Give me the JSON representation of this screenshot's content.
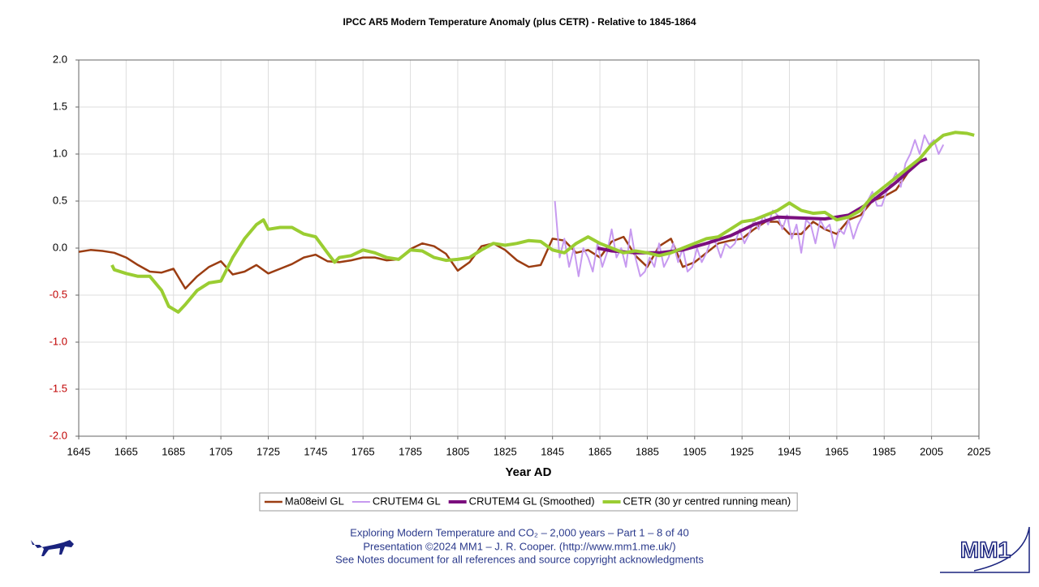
{
  "chart_data": {
    "type": "line",
    "title": "IPCC AR5 Modern Temperature Anomaly (plus CETR) - Relative to 1845-1864",
    "x_label": "Year AD",
    "xlim": [
      1645,
      2025
    ],
    "xticks": [
      1645,
      1665,
      1685,
      1705,
      1725,
      1745,
      1765,
      1785,
      1805,
      1825,
      1845,
      1865,
      1885,
      1905,
      1925,
      1945,
      1965,
      1985,
      2005,
      2025
    ],
    "ylim": [
      -2,
      2
    ],
    "yticks": [
      {
        "value": 2,
        "label": "2.0"
      },
      {
        "value": 1.5,
        "label": "1.5"
      },
      {
        "value": 1,
        "label": "1.0"
      },
      {
        "value": 0.5,
        "label": "0.5"
      },
      {
        "value": 0,
        "label": "0.0"
      },
      {
        "value": -0.5,
        "label": "-0.5"
      },
      {
        "value": -1,
        "label": "-1.0"
      },
      {
        "value": -1.5,
        "label": "-1.5"
      },
      {
        "value": -2,
        "label": "-2.0"
      }
    ],
    "grid": true,
    "legend": "bottom",
    "series": [
      {
        "name": "Ma08eivl GL",
        "color": "#9b3d12",
        "width": 2.5,
        "x": [
          1645,
          1650,
          1655,
          1660,
          1665,
          1670,
          1675,
          1680,
          1685,
          1690,
          1695,
          1700,
          1705,
          1710,
          1715,
          1720,
          1725,
          1730,
          1735,
          1740,
          1745,
          1750,
          1755,
          1760,
          1765,
          1770,
          1775,
          1780,
          1785,
          1790,
          1795,
          1800,
          1805,
          1810,
          1815,
          1820,
          1825,
          1830,
          1835,
          1840,
          1845,
          1850,
          1855,
          1860,
          1865,
          1870,
          1875,
          1880,
          1885,
          1890,
          1895,
          1900,
          1905,
          1910,
          1915,
          1920,
          1925,
          1930,
          1935,
          1940,
          1945,
          1950,
          1955,
          1960,
          1965,
          1970,
          1975,
          1980,
          1985,
          1990,
          1995,
          2000
        ],
        "values": [
          -0.04,
          -0.02,
          -0.03,
          -0.05,
          -0.1,
          -0.18,
          -0.25,
          -0.26,
          -0.22,
          -0.43,
          -0.3,
          -0.2,
          -0.14,
          -0.28,
          -0.25,
          -0.18,
          -0.27,
          -0.22,
          -0.17,
          -0.1,
          -0.07,
          -0.14,
          -0.15,
          -0.13,
          -0.1,
          -0.1,
          -0.13,
          -0.12,
          -0.01,
          0.05,
          0.02,
          -0.06,
          -0.24,
          -0.15,
          0.02,
          0.05,
          -0.02,
          -0.13,
          -0.2,
          -0.18,
          0.1,
          0.08,
          -0.05,
          -0.02,
          -0.1,
          0.07,
          0.12,
          -0.08,
          -0.2,
          0.02,
          0.1,
          -0.2,
          -0.15,
          -0.05,
          0.05,
          0.08,
          0.1,
          0.2,
          0.28,
          0.28,
          0.15,
          0.15,
          0.28,
          0.2,
          0.15,
          0.3,
          0.35,
          0.5,
          0.55,
          0.62,
          0.8,
          0.95
        ]
      },
      {
        "name": "CRUTEM4 GL",
        "color": "#c79af0",
        "width": 2,
        "x": [
          1846,
          1848,
          1850,
          1852,
          1854,
          1856,
          1858,
          1860,
          1862,
          1864,
          1866,
          1868,
          1870,
          1872,
          1874,
          1876,
          1878,
          1880,
          1882,
          1884,
          1886,
          1888,
          1890,
          1892,
          1894,
          1896,
          1898,
          1900,
          1902,
          1904,
          1906,
          1908,
          1910,
          1912,
          1914,
          1916,
          1918,
          1920,
          1922,
          1924,
          1926,
          1928,
          1930,
          1932,
          1934,
          1936,
          1938,
          1940,
          1942,
          1944,
          1946,
          1948,
          1950,
          1952,
          1954,
          1956,
          1958,
          1960,
          1962,
          1964,
          1966,
          1968,
          1970,
          1972,
          1974,
          1976,
          1978,
          1980,
          1982,
          1984,
          1986,
          1988,
          1990,
          1992,
          1994,
          1996,
          1998,
          2000,
          2002,
          2004,
          2006,
          2008,
          2010
        ],
        "values": [
          0.5,
          -0.1,
          0.1,
          -0.2,
          0.0,
          -0.3,
          0.0,
          -0.1,
          -0.25,
          0.05,
          -0.2,
          -0.05,
          0.2,
          -0.1,
          0.0,
          -0.2,
          0.2,
          -0.1,
          -0.3,
          -0.25,
          -0.1,
          -0.2,
          0.05,
          -0.2,
          -0.1,
          0.05,
          -0.15,
          0.0,
          -0.25,
          -0.2,
          0.0,
          -0.15,
          -0.05,
          0.1,
          0.05,
          -0.1,
          0.05,
          0.0,
          0.05,
          0.2,
          0.05,
          0.15,
          0.3,
          0.2,
          0.35,
          0.25,
          0.4,
          0.35,
          0.2,
          0.35,
          0.1,
          0.25,
          -0.05,
          0.3,
          0.25,
          0.05,
          0.3,
          0.2,
          0.25,
          0.0,
          0.2,
          0.15,
          0.3,
          0.1,
          0.25,
          0.35,
          0.5,
          0.6,
          0.45,
          0.45,
          0.6,
          0.7,
          0.8,
          0.65,
          0.9,
          1.0,
          1.15,
          1.0,
          1.2,
          1.1,
          1.15,
          1.0,
          1.1
        ]
      },
      {
        "name": "CRUTEM4 GL (Smoothed)",
        "color": "#7b0f7e",
        "width": 4,
        "x": [
          1864,
          1870,
          1880,
          1890,
          1900,
          1910,
          1920,
          1930,
          1940,
          1950,
          1960,
          1970,
          1980,
          1990,
          2000,
          2003
        ],
        "values": [
          0.0,
          -0.03,
          -0.05,
          -0.05,
          -0.02,
          0.05,
          0.13,
          0.25,
          0.33,
          0.32,
          0.31,
          0.35,
          0.5,
          0.7,
          0.92,
          0.95
        ]
      },
      {
        "name": "CETR (30 yr centred running mean)",
        "color": "#9acd32",
        "width": 4,
        "x": [
          1659,
          1660,
          1665,
          1670,
          1675,
          1680,
          1683,
          1687,
          1690,
          1695,
          1700,
          1705,
          1710,
          1715,
          1720,
          1723,
          1725,
          1730,
          1735,
          1740,
          1745,
          1750,
          1753,
          1755,
          1760,
          1765,
          1770,
          1775,
          1780,
          1785,
          1790,
          1795,
          1800,
          1805,
          1810,
          1815,
          1820,
          1825,
          1830,
          1835,
          1840,
          1845,
          1850,
          1855,
          1860,
          1865,
          1870,
          1875,
          1880,
          1885,
          1890,
          1895,
          1900,
          1905,
          1910,
          1915,
          1920,
          1925,
          1930,
          1935,
          1940,
          1945,
          1950,
          1955,
          1960,
          1965,
          1970,
          1975,
          1980,
          1985,
          1990,
          1995,
          2000,
          2005,
          2010,
          2015,
          2020,
          2023
        ],
        "values": [
          -0.18,
          -0.23,
          -0.27,
          -0.3,
          -0.3,
          -0.45,
          -0.62,
          -0.68,
          -0.6,
          -0.45,
          -0.37,
          -0.35,
          -0.1,
          0.1,
          0.25,
          0.3,
          0.2,
          0.22,
          0.22,
          0.15,
          0.12,
          -0.05,
          -0.15,
          -0.1,
          -0.08,
          -0.02,
          -0.05,
          -0.1,
          -0.12,
          -0.02,
          -0.03,
          -0.1,
          -0.13,
          -0.12,
          -0.1,
          -0.02,
          0.05,
          0.03,
          0.05,
          0.08,
          0.07,
          -0.02,
          -0.05,
          0.05,
          0.12,
          0.05,
          0.0,
          -0.05,
          -0.03,
          -0.05,
          -0.08,
          -0.05,
          0.0,
          0.05,
          0.1,
          0.12,
          0.2,
          0.28,
          0.3,
          0.35,
          0.4,
          0.48,
          0.4,
          0.37,
          0.38,
          0.3,
          0.33,
          0.4,
          0.55,
          0.65,
          0.75,
          0.85,
          0.95,
          1.1,
          1.2,
          1.23,
          1.22,
          1.2
        ]
      }
    ],
    "footer": [
      "Exploring Modern Temperature and CO₂ – 2,000 years – Part 1 – 8 of 40",
      "Presentation ©2024 MM1 – J. R. Cooper. (http://www.mm1.me.uk/)",
      "See Notes document for all references and source copyright acknowledgments"
    ],
    "logo": "MM1"
  }
}
